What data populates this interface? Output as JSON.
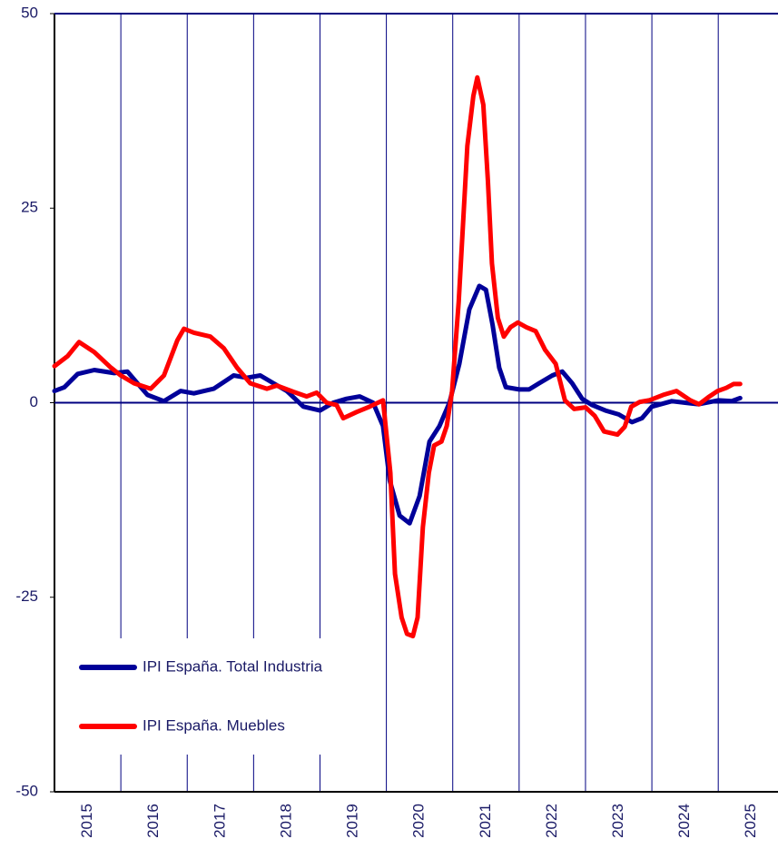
{
  "chart_data": {
    "type": "line",
    "xlim": [
      2015,
      2025.9
    ],
    "xticks": [
      2015,
      2016,
      2017,
      2018,
      2019,
      2020,
      2021,
      2022,
      2023,
      2024,
      2025
    ],
    "ylim": [
      -50,
      50
    ],
    "yticks": [
      -50,
      -25,
      0,
      25,
      50
    ],
    "grid": true,
    "legend": "lower left",
    "series": [
      {
        "name": "IPI España. Total Industria",
        "color": "#000099",
        "x": [
          2015.0,
          2015.15,
          2015.35,
          2015.6,
          2015.9,
          2016.1,
          2016.25,
          2016.4,
          2016.65,
          2016.9,
          2017.1,
          2017.4,
          2017.7,
          2017.9,
          2018.1,
          2018.3,
          2018.5,
          2018.75,
          2019.0,
          2019.2,
          2019.4,
          2019.6,
          2019.8,
          2019.95,
          2020.05,
          2020.2,
          2020.35,
          2020.5,
          2020.65,
          2020.8,
          2020.95,
          2021.1,
          2021.25,
          2021.4,
          2021.5,
          2021.6,
          2021.7,
          2021.8,
          2022.0,
          2022.15,
          2022.3,
          2022.5,
          2022.65,
          2022.8,
          2022.95,
          2023.1,
          2023.3,
          2023.5,
          2023.7,
          2023.85,
          2024.0,
          2024.3,
          2024.5,
          2024.7,
          2025.0,
          2025.2,
          2025.33
        ],
        "values": [
          1.5,
          2,
          3.7,
          4.2,
          3.8,
          4,
          2.5,
          1,
          0.2,
          1.5,
          1.2,
          1.8,
          3.5,
          3.2,
          3.5,
          2.5,
          1.5,
          -0.5,
          -1,
          0,
          0.5,
          0.8,
          0,
          -3,
          -10,
          -14.5,
          -15.5,
          -12,
          -5,
          -3,
          0,
          5,
          12,
          15,
          14.5,
          10,
          4.5,
          2,
          1.7,
          1.7,
          2.5,
          3.5,
          4,
          2.5,
          0.5,
          -0.3,
          -1,
          -1.5,
          -2.5,
          -2,
          -0.5,
          0.2,
          0,
          -0.2,
          0.3,
          0.2,
          0.6
        ]
      },
      {
        "name": "IPI España. Muebles",
        "color": "#ff0000",
        "x": [
          2015.0,
          2015.2,
          2015.37,
          2015.6,
          2015.85,
          2016.0,
          2016.2,
          2016.45,
          2016.65,
          2016.85,
          2016.95,
          2017.1,
          2017.35,
          2017.55,
          2017.75,
          2017.95,
          2018.2,
          2018.35,
          2018.6,
          2018.8,
          2018.95,
          2019.1,
          2019.25,
          2019.35,
          2019.55,
          2019.75,
          2019.95,
          2020.06,
          2020.13,
          2020.23,
          2020.31,
          2020.4,
          2020.47,
          2020.55,
          2020.64,
          2020.72,
          2020.83,
          2020.91,
          2020.99,
          2021.09,
          2021.16,
          2021.22,
          2021.31,
          2021.37,
          2021.46,
          2021.53,
          2021.59,
          2021.68,
          2021.77,
          2021.87,
          2021.98,
          2022.11,
          2022.25,
          2022.39,
          2022.55,
          2022.69,
          2022.83,
          2023.0,
          2023.14,
          2023.28,
          2023.48,
          2023.59,
          2023.69,
          2023.82,
          2023.96,
          2024.17,
          2024.37,
          2024.58,
          2024.71,
          2024.85,
          2024.99,
          2025.12,
          2025.23,
          2025.33
        ],
        "values": [
          4.7,
          6,
          7.8,
          6.5,
          4.5,
          3.5,
          2.5,
          1.8,
          3.5,
          8,
          9.5,
          9,
          8.5,
          7,
          4.5,
          2.5,
          1.8,
          2.2,
          1.4,
          0.8,
          1.3,
          0,
          -0.3,
          -2,
          -1.2,
          -0.5,
          0.3,
          -9,
          -22,
          -27.6,
          -29.7,
          -30,
          -27.6,
          -16,
          -9,
          -5.5,
          -5,
          -3,
          1.5,
          13,
          23.7,
          33,
          39.4,
          41.8,
          38.3,
          28.4,
          17.9,
          10.9,
          8.5,
          9.7,
          10.3,
          9.7,
          9.2,
          6.8,
          5,
          0.3,
          -0.8,
          -0.6,
          -1.7,
          -3.7,
          -4.1,
          -3.1,
          -0.5,
          0.1,
          0.3,
          1,
          1.5,
          0.3,
          -0.2,
          0.7,
          1.5,
          1.9,
          2.4,
          2.4
        ]
      }
    ]
  }
}
